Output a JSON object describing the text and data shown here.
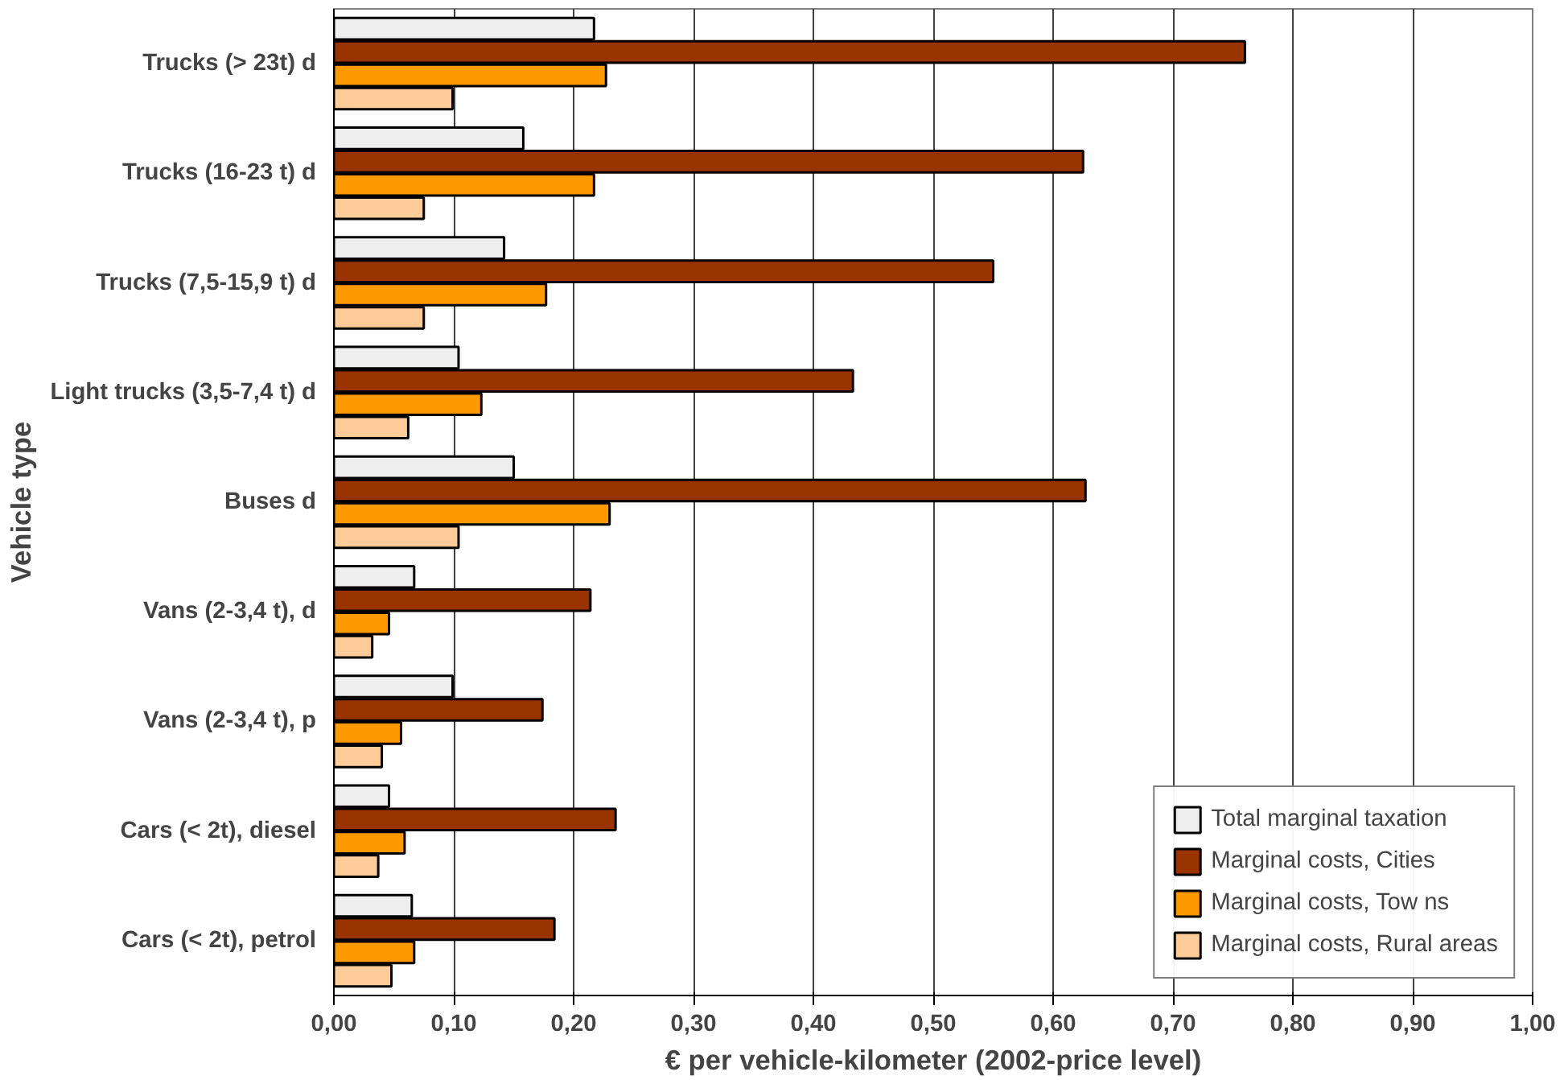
{
  "chart_data": {
    "type": "bar",
    "orientation": "horizontal",
    "xlabel": "€ per vehicle-kilometer (2002-price level)",
    "ylabel": "Vehicle type",
    "categories": [
      "Trucks (> 23t) d",
      "Trucks (16-23 t) d",
      "Trucks (7,5-15,9 t) d",
      "Light trucks (3,5-7,4 t) d",
      "Buses d",
      "Vans (2-3,4 t), d",
      "Vans (2-3,4 t), p",
      "Cars (< 2t), diesel",
      "Cars (< 2t), petrol"
    ],
    "series": [
      {
        "name": "Total marginal taxation",
        "color": "#eeeeee",
        "values": [
          0.217,
          0.158,
          0.142,
          0.104,
          0.15,
          0.067,
          0.099,
          0.046,
          0.065
        ]
      },
      {
        "name": "Marginal costs, Cities",
        "color": "#993300",
        "values": [
          0.76,
          0.625,
          0.55,
          0.433,
          0.627,
          0.214,
          0.174,
          0.235,
          0.184
        ]
      },
      {
        "name": "Marginal costs, Tow ns",
        "color": "#ff9900",
        "values": [
          0.227,
          0.217,
          0.177,
          0.123,
          0.23,
          0.046,
          0.056,
          0.059,
          0.067
        ]
      },
      {
        "name": "Marginal costs, Rural areas",
        "color": "#ffcc99",
        "values": [
          0.099,
          0.075,
          0.075,
          0.062,
          0.104,
          0.032,
          0.04,
          0.037,
          0.048
        ]
      }
    ],
    "xlim": [
      0,
      1
    ],
    "xticks": [
      {
        "value": 0,
        "label": "0,00"
      },
      {
        "value": 0.1,
        "label": "0,10"
      },
      {
        "value": 0.2,
        "label": "0,20"
      },
      {
        "value": 0.3,
        "label": "0,30"
      },
      {
        "value": 0.4,
        "label": "0,40"
      },
      {
        "value": 0.5,
        "label": "0,50"
      },
      {
        "value": 0.6,
        "label": "0,60"
      },
      {
        "value": 0.7,
        "label": "0,70"
      },
      {
        "value": 0.8,
        "label": "0,80"
      },
      {
        "value": 0.9,
        "label": "0,90"
      },
      {
        "value": 1.0,
        "label": "1,00"
      }
    ],
    "grid": "x",
    "legend": "bottom right"
  }
}
